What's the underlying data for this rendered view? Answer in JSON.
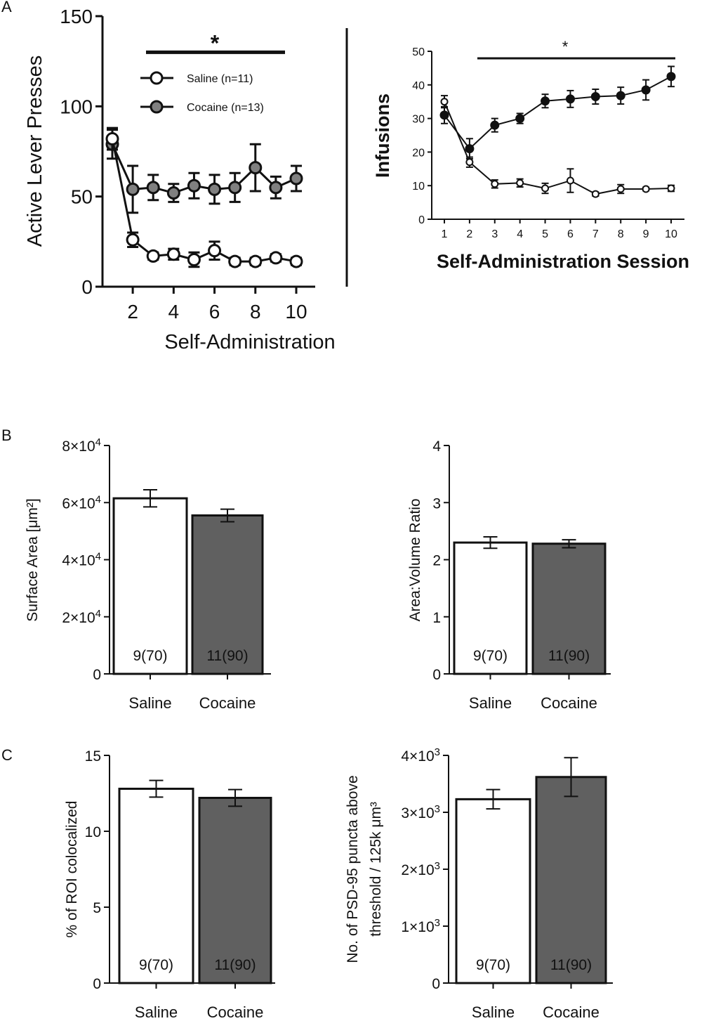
{
  "panel_labels": {
    "a": "A",
    "b": "B",
    "c": "C"
  },
  "colors": {
    "saline_fill": "#ffffff",
    "cocaine_fill": "#606060",
    "cocaine_marker_a1": "#808080",
    "cocaine_marker_a2": "#111111",
    "axis": "#111111"
  },
  "chart_data": [
    {
      "id": "a1",
      "type": "line",
      "title": "",
      "xlabel": "Self-Administration",
      "ylabel": "Active Lever Presses",
      "xlim": [
        0.5,
        11.5
      ],
      "ylim": [
        0,
        150
      ],
      "xticks": [
        2,
        4,
        6,
        8,
        10
      ],
      "yticks": [
        0,
        50,
        100,
        150
      ],
      "x": [
        1,
        2,
        3,
        4,
        5,
        6,
        7,
        8,
        9,
        10
      ],
      "series": [
        {
          "name": "Saline (n=11)",
          "values": [
            82,
            26,
            17,
            18,
            15,
            20,
            14,
            14,
            16,
            14
          ],
          "errors": [
            6,
            4,
            2,
            3,
            4,
            5,
            2,
            2,
            2,
            2
          ],
          "marker": "open"
        },
        {
          "name": "Cocaine (n=13)",
          "values": [
            79,
            54,
            55,
            52,
            56,
            54,
            55,
            66,
            55,
            60
          ],
          "errors": [
            8,
            13,
            7,
            5,
            7,
            8,
            8,
            13,
            6,
            7
          ],
          "marker": "filled"
        }
      ],
      "significance": {
        "x_start": 3,
        "x_end": 9.7,
        "y": 130,
        "label": "*"
      },
      "legend_position": "top-center"
    },
    {
      "id": "a2",
      "type": "line",
      "title": "",
      "xlabel": "Self-Administration Session",
      "ylabel": "Infusions",
      "xlim": [
        0.5,
        10.5
      ],
      "ylim": [
        0,
        50
      ],
      "xticks": [
        1,
        2,
        3,
        4,
        5,
        6,
        7,
        8,
        9,
        10
      ],
      "yticks": [
        0,
        10,
        20,
        30,
        40,
        50
      ],
      "x": [
        1,
        2,
        3,
        4,
        5,
        6,
        7,
        8,
        9,
        10
      ],
      "series": [
        {
          "name": "Saline",
          "values": [
            35,
            17,
            10.5,
            10.8,
            9.2,
            11.5,
            7.5,
            9,
            9,
            9.2
          ],
          "errors": [
            1.8,
            1.5,
            1.2,
            1.2,
            1.5,
            3.5,
            0.6,
            1.3,
            0.5,
            0.9
          ],
          "marker": "open"
        },
        {
          "name": "Cocaine",
          "values": [
            31,
            21,
            28,
            30,
            35.2,
            35.8,
            36.5,
            36.8,
            38.5,
            42.5
          ],
          "errors": [
            2.5,
            3,
            2,
            1.5,
            2,
            2.5,
            2.2,
            2.5,
            3,
            3
          ]
        }
      ],
      "significance": {
        "x_start": 2.4,
        "x_end": 10,
        "y": 48.5,
        "label": "*"
      }
    },
    {
      "id": "b1",
      "type": "bar",
      "ylabel": "Surface Area [μm²]",
      "ylim": [
        0,
        80000
      ],
      "yticks": [
        0,
        20000,
        40000,
        60000,
        80000
      ],
      "ytick_labels": [
        {
          "base": "0",
          "exp": ""
        },
        {
          "base": "2×10",
          "exp": "4"
        },
        {
          "base": "4×10",
          "exp": "4"
        },
        {
          "base": "6×10",
          "exp": "4"
        },
        {
          "base": "8×10",
          "exp": "4"
        }
      ],
      "categories": [
        "Saline",
        "Cocaine"
      ],
      "values": [
        61500,
        55500
      ],
      "errors": [
        3000,
        2200
      ],
      "bar_labels": [
        "9(70)",
        "11(90)"
      ]
    },
    {
      "id": "b2",
      "type": "bar",
      "ylabel": "Area:Volume Ratio",
      "ylim": [
        0,
        4
      ],
      "yticks": [
        0,
        1,
        2,
        3,
        4
      ],
      "categories": [
        "Saline",
        "Cocaine"
      ],
      "values": [
        2.3,
        2.28
      ],
      "errors": [
        0.1,
        0.07
      ],
      "bar_labels": [
        "9(70)",
        "11(90)"
      ]
    },
    {
      "id": "c1",
      "type": "bar",
      "ylabel": "% of ROI colocalized",
      "ylim": [
        0,
        15
      ],
      "yticks": [
        0,
        5,
        10,
        15
      ],
      "categories": [
        "Saline",
        "Cocaine"
      ],
      "values": [
        12.8,
        12.2
      ],
      "errors": [
        0.55,
        0.55
      ],
      "bar_labels": [
        "9(70)",
        "11(90)"
      ]
    },
    {
      "id": "c2",
      "type": "bar",
      "ylabel_lines": [
        "No. of PSD-95 puncta above",
        "threshold / 125k μm³"
      ],
      "ylim": [
        0,
        4000
      ],
      "yticks": [
        0,
        1000,
        2000,
        3000,
        4000
      ],
      "ytick_labels": [
        {
          "base": "0",
          "exp": ""
        },
        {
          "base": "1×10",
          "exp": "3"
        },
        {
          "base": "2×10",
          "exp": "3"
        },
        {
          "base": "3×10",
          "exp": "3"
        },
        {
          "base": "4×10",
          "exp": "3"
        }
      ],
      "categories": [
        "Saline",
        "Cocaine"
      ],
      "values": [
        3230,
        3620
      ],
      "errors": [
        170,
        340
      ],
      "bar_labels": [
        "9(70)",
        "11(90)"
      ]
    }
  ]
}
